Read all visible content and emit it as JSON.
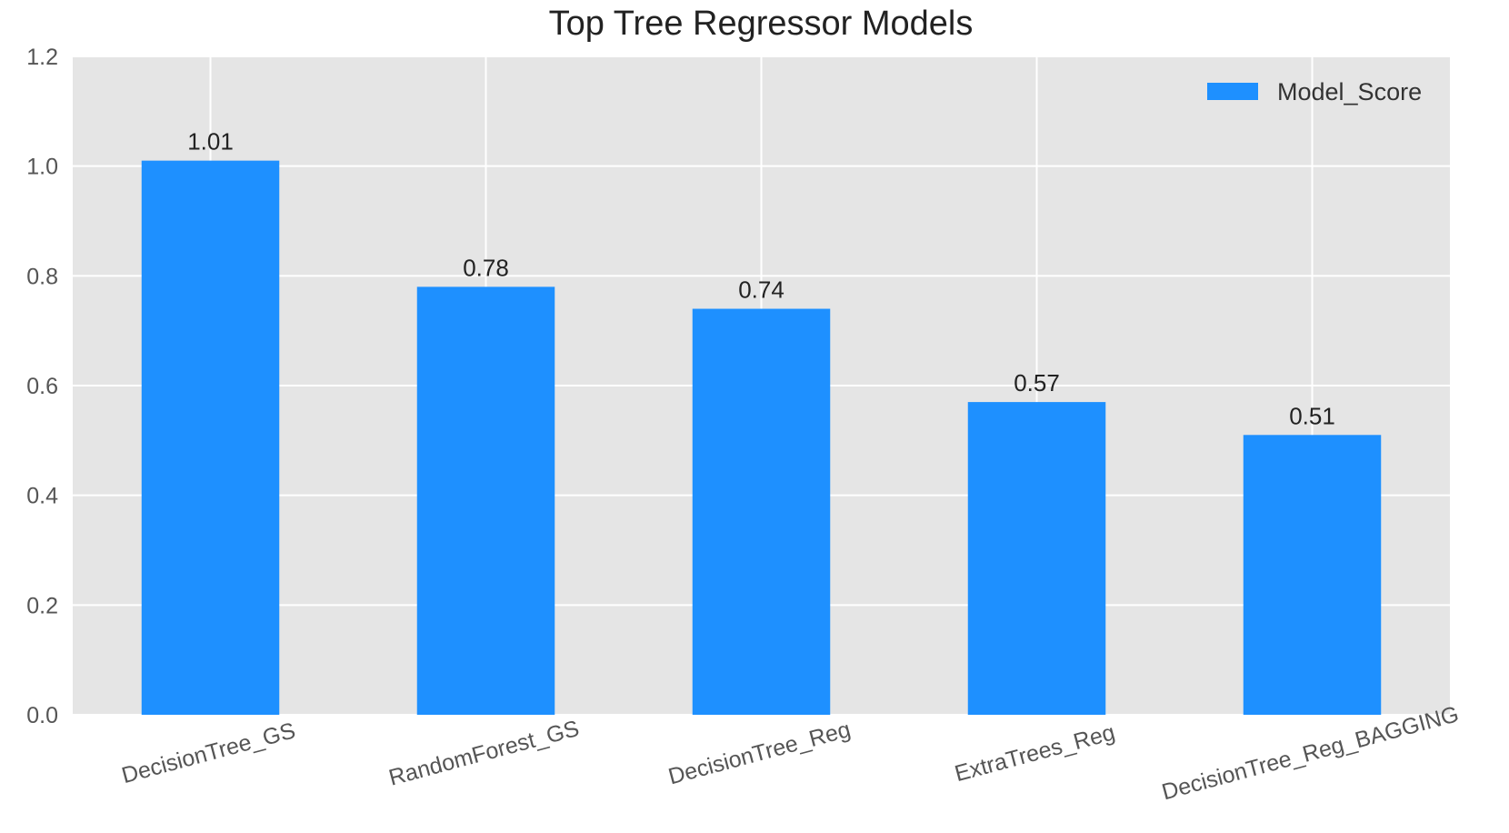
{
  "chart_data": {
    "type": "bar",
    "title": "Top Tree Regressor Models",
    "xlabel": "",
    "ylabel": "",
    "categories": [
      "DecisionTree_GS",
      "RandomForest_GS",
      "DecisionTree_Reg",
      "ExtraTrees_Reg",
      "DecisionTree_Reg_BAGGING"
    ],
    "series": [
      {
        "name": "Model_Score",
        "values": [
          1.01,
          0.78,
          0.74,
          0.57,
          0.51
        ],
        "color": "#1e90ff"
      }
    ],
    "data_labels": [
      "1.01",
      "0.78",
      "0.74",
      "0.57",
      "0.51"
    ],
    "ylim": [
      0,
      1.2
    ],
    "yticks": [
      0.0,
      0.2,
      0.4,
      0.6,
      0.8,
      1.0,
      1.2
    ],
    "ytick_labels": [
      "0.0",
      "0.2",
      "0.4",
      "0.6",
      "0.8",
      "1.0",
      "1.2"
    ],
    "x_tick_rotation_deg": -15,
    "grid": true,
    "legend": {
      "position": "top-right",
      "entries": [
        "Model_Score"
      ]
    },
    "colors": {
      "plot_background": "#e5e5e5",
      "grid": "#ffffff",
      "bar": "#1e90ff"
    }
  }
}
